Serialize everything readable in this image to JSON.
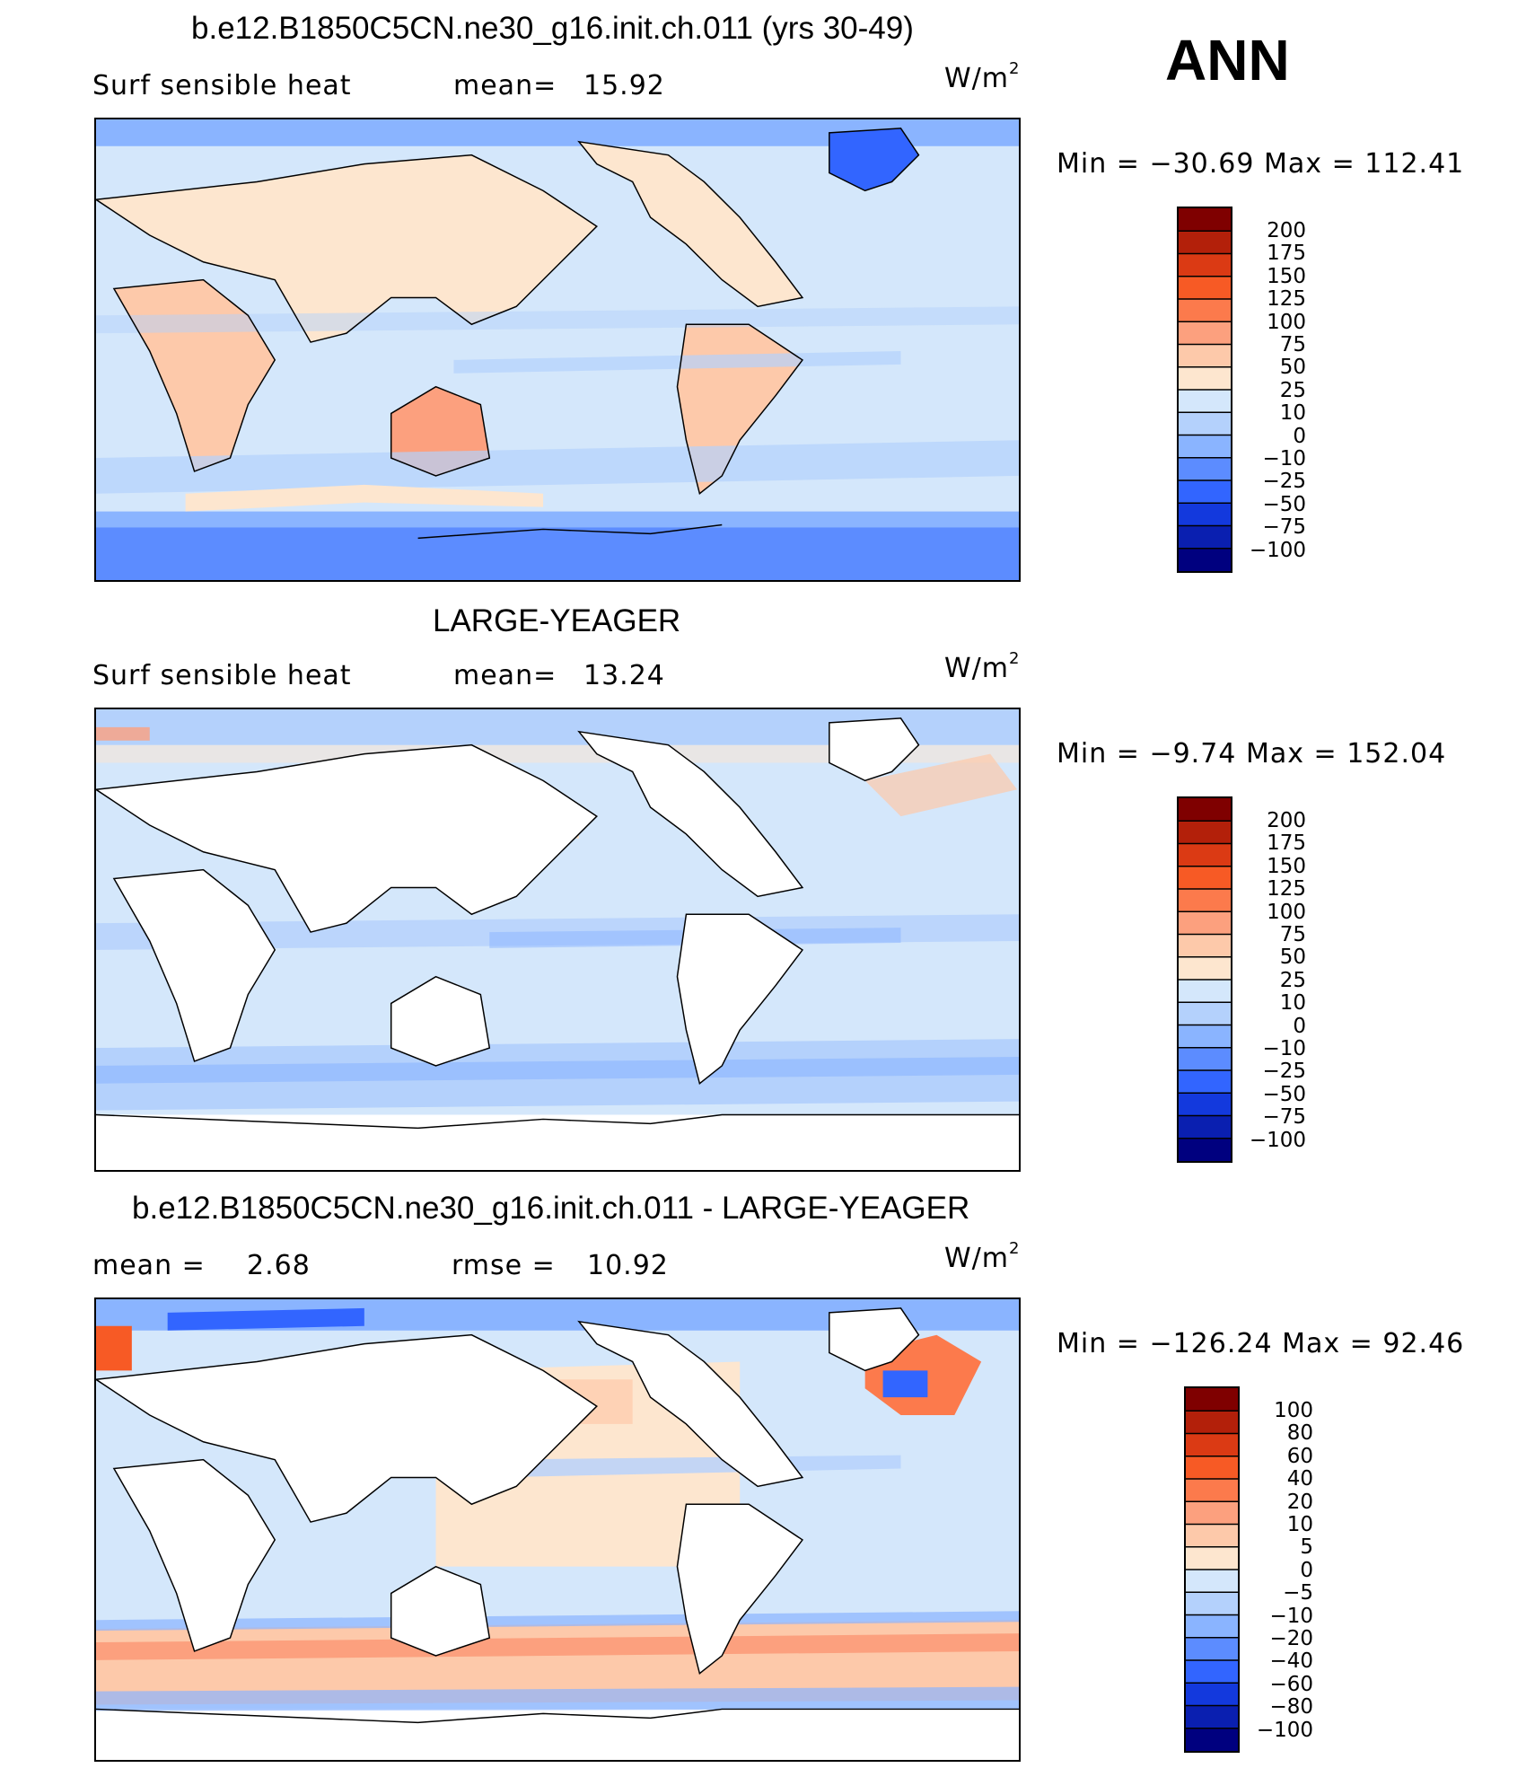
{
  "header": {
    "season": "ANN"
  },
  "panels": [
    {
      "title": "b.e12.B1850C5CN.ne30_g16.init.ch.011 (yrs 30-49)",
      "left_label": "Surf  sensible  heat",
      "stat_label": "mean=",
      "stat_value": "15.92",
      "units_base": "W/m",
      "units_exp": "2",
      "min_label": "Min  =",
      "min_value": "−30.69",
      "max_label": "Max  =",
      "max_value": "112.41",
      "legend": {
        "labels": [
          "200",
          "175",
          "150",
          "125",
          "100",
          "75",
          "50",
          "25",
          "10",
          "0",
          "−10",
          "−25",
          "−50",
          "−75",
          "−100"
        ],
        "colors": [
          "#7f0000",
          "#b3200a",
          "#db3a14",
          "#f75a25",
          "#fc7a4c",
          "#fca07e",
          "#fdc9aa",
          "#fde6cf",
          "#d4e7fb",
          "#b4d1fc",
          "#8ab4ff",
          "#5c8cff",
          "#3265ff",
          "#1339dd",
          "#0a1fb0",
          "#00007f"
        ]
      }
    },
    {
      "title": "LARGE-YEAGER",
      "left_label": "Surf  sensible  heat",
      "stat_label": "mean=",
      "stat_value": "13.24",
      "units_base": "W/m",
      "units_exp": "2",
      "min_label": "Min  =",
      "min_value": "−9.74",
      "max_label": "Max  =",
      "max_value": "152.04",
      "legend": {
        "labels": [
          "200",
          "175",
          "150",
          "125",
          "100",
          "75",
          "50",
          "25",
          "10",
          "0",
          "−10",
          "−25",
          "−50",
          "−75",
          "−100"
        ],
        "colors": [
          "#7f0000",
          "#b3200a",
          "#db3a14",
          "#f75a25",
          "#fc7a4c",
          "#fca07e",
          "#fdc9aa",
          "#fde6cf",
          "#d4e7fb",
          "#b4d1fc",
          "#8ab4ff",
          "#5c8cff",
          "#3265ff",
          "#1339dd",
          "#0a1fb0",
          "#00007f"
        ]
      }
    },
    {
      "title": "b.e12.B1850C5CN.ne30_g16.init.ch.011 - LARGE-YEAGER",
      "left_label": "mean  =",
      "left_value": "2.68",
      "stat_label": "rmse  =",
      "stat_value": "10.92",
      "units_base": "W/m",
      "units_exp": "2",
      "min_label": "Min  =",
      "min_value": "−126.24",
      "max_label": "Max  =",
      "max_value": "92.46",
      "legend": {
        "labels": [
          "100",
          "80",
          "60",
          "40",
          "20",
          "10",
          "5",
          "0",
          "−5",
          "−10",
          "−20",
          "−40",
          "−60",
          "−80",
          "−100"
        ],
        "colors": [
          "#7f0000",
          "#b3200a",
          "#db3a14",
          "#f75a25",
          "#fc7a4c",
          "#fca07e",
          "#fdc9aa",
          "#fde6cf",
          "#d4e7fb",
          "#b4d1fc",
          "#8ab4ff",
          "#5c8cff",
          "#3265ff",
          "#1339dd",
          "#0a1fb0",
          "#00007f"
        ]
      }
    }
  ],
  "palette": {
    "land": "#ffffff",
    "ocean_light": "#d4e7fb",
    "ocean_mid": "#b4d1fc",
    "cool": "#8ab4ff",
    "cold": "#5c8cff",
    "warm_light": "#fde6cf",
    "warm": "#fdc9aa",
    "warmer": "#fca07e",
    "hot": "#f75a25"
  }
}
